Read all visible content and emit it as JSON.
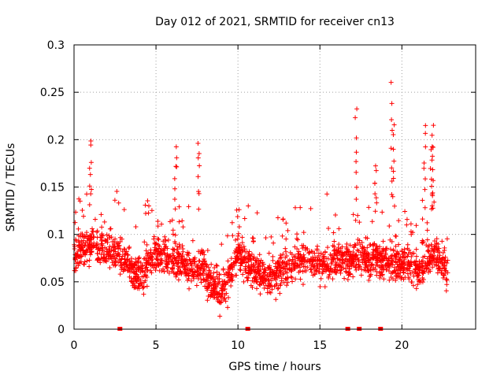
{
  "chart_data": {
    "type": "scatter",
    "title": "Day 012 of 2021, SRMTID for receiver cn13",
    "xlabel": "GPS time / hours",
    "ylabel": "SRMTID / TECUs",
    "xlim": [
      0,
      24.5
    ],
    "ylim": [
      0,
      0.3
    ],
    "x_ticks": [
      0,
      5,
      10,
      15,
      20
    ],
    "y_ticks": [
      0,
      0.05,
      0.1,
      0.15,
      0.2,
      0.25,
      0.3
    ],
    "x_tick_labels": [
      "0",
      "5",
      "10",
      "15",
      "20"
    ],
    "y_tick_labels": [
      "0",
      "0.05",
      "0.1",
      "0.15",
      "0.2",
      "0.25",
      "0.3"
    ],
    "grid": true,
    "marker": "plus",
    "color": "#ff0000",
    "series": [
      {
        "name": "SRMTID",
        "x_range": [
          0,
          22.8
        ],
        "note": "dense scatter of several thousand points; baseline ~0.05-0.10 TECU",
        "profile": [
          {
            "x": 0.0,
            "y": 0.08
          },
          {
            "x": 1.0,
            "y": 0.09
          },
          {
            "x": 2.0,
            "y": 0.085
          },
          {
            "x": 3.0,
            "y": 0.075
          },
          {
            "x": 4.0,
            "y": 0.055
          },
          {
            "x": 5.0,
            "y": 0.08
          },
          {
            "x": 6.0,
            "y": 0.075
          },
          {
            "x": 7.0,
            "y": 0.065
          },
          {
            "x": 8.0,
            "y": 0.06
          },
          {
            "x": 9.0,
            "y": 0.035
          },
          {
            "x": 10.0,
            "y": 0.08
          },
          {
            "x": 11.0,
            "y": 0.06
          },
          {
            "x": 12.0,
            "y": 0.055
          },
          {
            "x": 13.0,
            "y": 0.065
          },
          {
            "x": 14.0,
            "y": 0.075
          },
          {
            "x": 15.0,
            "y": 0.07
          },
          {
            "x": 16.0,
            "y": 0.07
          },
          {
            "x": 17.0,
            "y": 0.075
          },
          {
            "x": 18.0,
            "y": 0.075
          },
          {
            "x": 19.0,
            "y": 0.07
          },
          {
            "x": 20.0,
            "y": 0.07
          },
          {
            "x": 21.0,
            "y": 0.06
          },
          {
            "x": 22.0,
            "y": 0.08
          },
          {
            "x": 22.8,
            "y": 0.06
          }
        ],
        "spikes": [
          {
            "x": 1.0,
            "y": 0.2
          },
          {
            "x": 6.2,
            "y": 0.195
          },
          {
            "x": 7.6,
            "y": 0.198
          },
          {
            "x": 17.2,
            "y": 0.233
          },
          {
            "x": 18.4,
            "y": 0.17
          },
          {
            "x": 19.4,
            "y": 0.258
          },
          {
            "x": 19.5,
            "y": 0.218
          },
          {
            "x": 21.4,
            "y": 0.214
          },
          {
            "x": 21.9,
            "y": 0.212
          },
          {
            "x": 21.8,
            "y": 0.197
          }
        ]
      }
    ],
    "gap_markers_x": [
      2.8,
      10.6,
      16.7,
      17.4,
      18.7
    ]
  }
}
